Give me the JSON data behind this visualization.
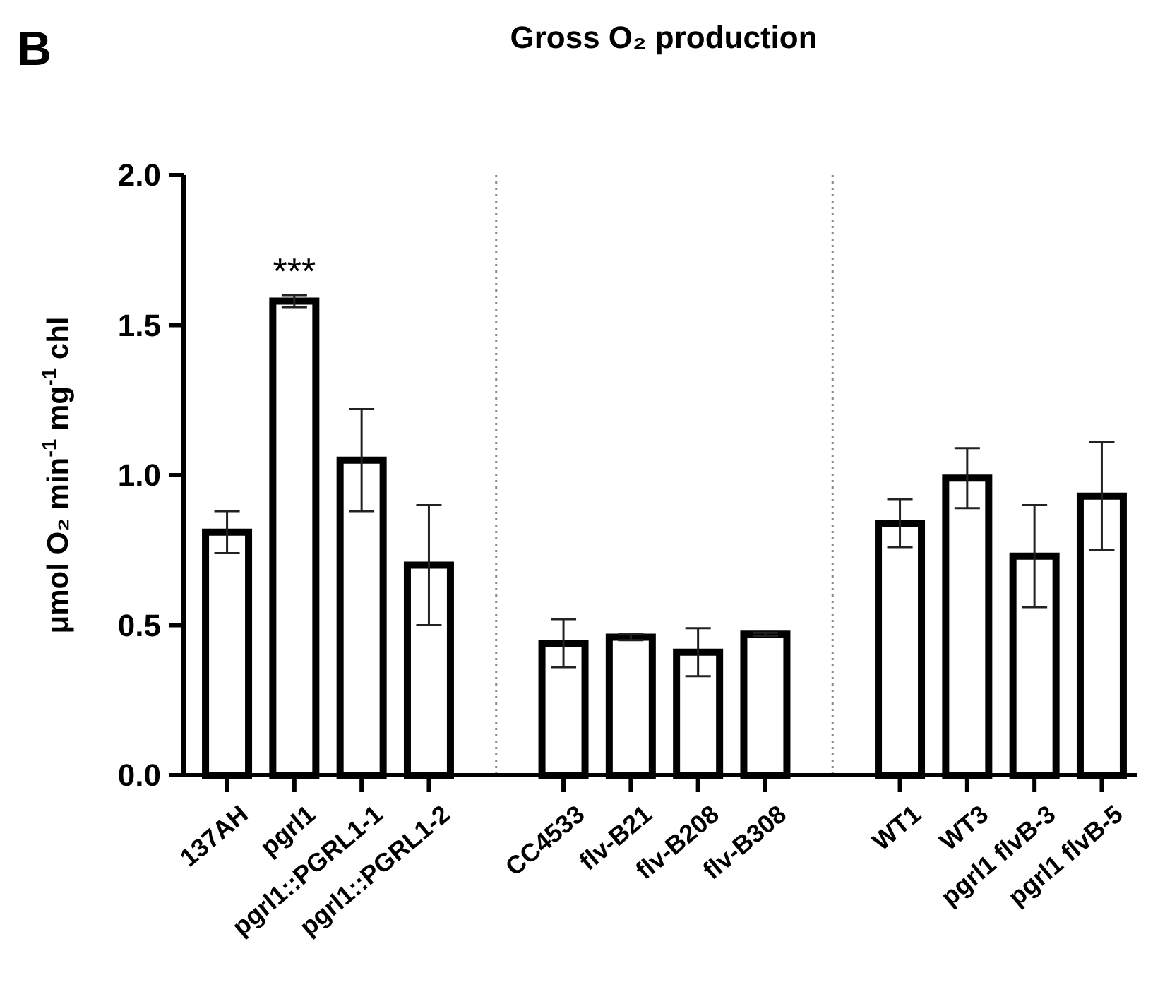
{
  "chart_data": {
    "type": "bar",
    "title": "Gross O₂ production",
    "ylabel": "μmol O₂ min$^{-1}$ mg$^{-1}$ chl",
    "categories": [
      "137AH",
      "pgrl1",
      "pgrl1::PGRL1-1",
      "pgrl1::PGRL1-2",
      null,
      "CC4533",
      "flv-B21",
      "flv-B208",
      "flv-B308",
      null,
      "WT1",
      "WT3",
      "pgrl1 flvB-3",
      "pgrl1 flvB-5"
    ],
    "values": [
      0.81,
      1.58,
      1.05,
      0.7,
      null,
      0.44,
      0.46,
      0.41,
      0.47,
      null,
      0.84,
      0.99,
      0.73,
      0.93
    ],
    "errors": [
      0.07,
      0.02,
      0.17,
      0.2,
      null,
      0.08,
      0.01,
      0.08,
      0.005,
      null,
      0.08,
      0.1,
      0.17,
      0.18
    ],
    "color": "#ffffff",
    "ylim": [
      0,
      2
    ],
    "yticks": [
      {
        "value": 0,
        "label": "0.0"
      },
      "0.5",
      {
        "value": 1,
        "label": "1.0"
      },
      "1.5",
      {
        "value": 2,
        "label": "2.0"
      }
    ],
    "annotations": [
      "B",
      "***"
    ]
  }
}
